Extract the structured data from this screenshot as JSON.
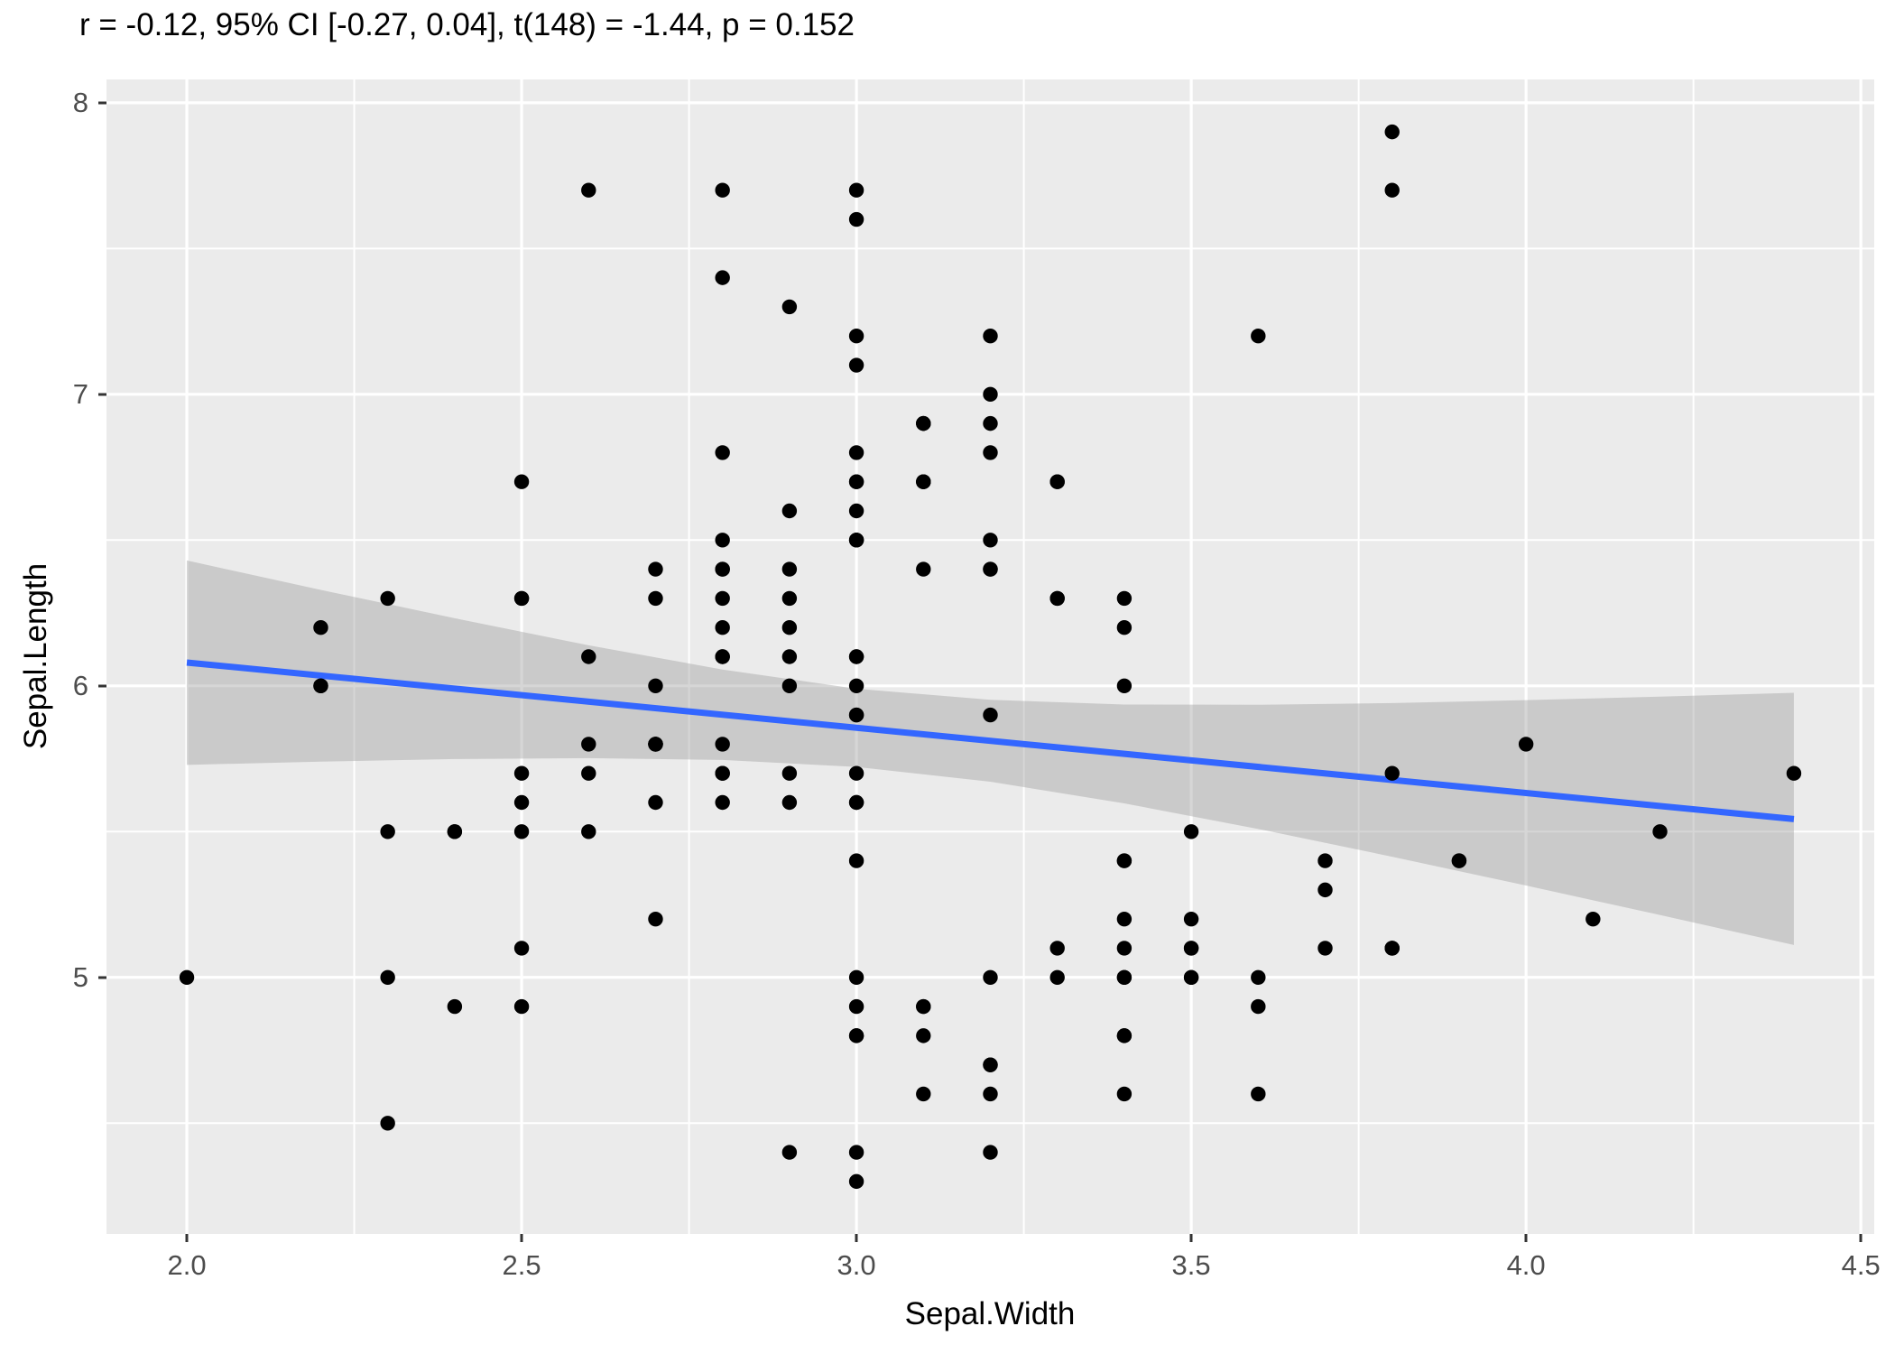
{
  "title": "r = -0.12, 95% CI [-0.27, 0.04], t(148) = -1.44, p = 0.152",
  "chart_data": {
    "type": "scatter",
    "title": "r = -0.12, 95% CI [-0.27, 0.04], t(148) = -1.44, p = 0.152",
    "xlabel": "Sepal.Width",
    "ylabel": "Sepal.Length",
    "x_domain": [
      1.88,
      4.52
    ],
    "y_domain": [
      4.12,
      8.08
    ],
    "x_major_ticks": [
      2.0,
      2.5,
      3.0,
      3.5,
      4.0,
      4.5
    ],
    "x_tick_labels": [
      "2.0",
      "2.5",
      "3.0",
      "3.5",
      "4.0",
      "4.5"
    ],
    "x_minor_ticks": [
      2.25,
      2.75,
      3.25,
      3.75,
      4.25
    ],
    "y_major_ticks": [
      5,
      6,
      7,
      8
    ],
    "y_tick_labels": [
      "5",
      "6",
      "7",
      "8"
    ],
    "y_minor_ticks": [
      4.5,
      5.5,
      6.5,
      7.5
    ],
    "grid": true,
    "legend": false,
    "points": [
      [
        3.5,
        5.1
      ],
      [
        3.0,
        4.9
      ],
      [
        3.2,
        4.7
      ],
      [
        3.1,
        4.6
      ],
      [
        3.6,
        5.0
      ],
      [
        3.9,
        5.4
      ],
      [
        3.4,
        4.6
      ],
      [
        3.4,
        5.0
      ],
      [
        2.9,
        4.4
      ],
      [
        3.1,
        4.9
      ],
      [
        3.7,
        5.4
      ],
      [
        3.4,
        4.8
      ],
      [
        3.0,
        4.8
      ],
      [
        3.0,
        4.3
      ],
      [
        4.0,
        5.8
      ],
      [
        4.4,
        5.7
      ],
      [
        3.9,
        5.4
      ],
      [
        3.5,
        5.1
      ],
      [
        3.8,
        5.7
      ],
      [
        3.8,
        5.1
      ],
      [
        3.4,
        5.4
      ],
      [
        3.7,
        5.1
      ],
      [
        3.6,
        4.6
      ],
      [
        3.3,
        5.1
      ],
      [
        3.4,
        4.8
      ],
      [
        3.0,
        5.0
      ],
      [
        3.4,
        5.0
      ],
      [
        3.5,
        5.2
      ],
      [
        3.4,
        5.2
      ],
      [
        3.2,
        4.7
      ],
      [
        3.1,
        4.8
      ],
      [
        3.4,
        5.4
      ],
      [
        4.1,
        5.2
      ],
      [
        4.2,
        5.5
      ],
      [
        3.1,
        4.9
      ],
      [
        3.2,
        5.0
      ],
      [
        3.5,
        5.5
      ],
      [
        3.6,
        4.9
      ],
      [
        3.0,
        4.4
      ],
      [
        3.4,
        5.1
      ],
      [
        3.5,
        5.0
      ],
      [
        2.3,
        4.5
      ],
      [
        3.2,
        4.4
      ],
      [
        3.5,
        5.0
      ],
      [
        3.8,
        5.1
      ],
      [
        3.0,
        4.8
      ],
      [
        3.8,
        5.1
      ],
      [
        3.2,
        4.6
      ],
      [
        3.7,
        5.3
      ],
      [
        3.3,
        5.0
      ],
      [
        3.2,
        7.0
      ],
      [
        3.2,
        6.4
      ],
      [
        3.1,
        6.9
      ],
      [
        2.3,
        5.5
      ],
      [
        2.8,
        6.5
      ],
      [
        2.8,
        5.7
      ],
      [
        3.3,
        6.3
      ],
      [
        2.4,
        4.9
      ],
      [
        2.9,
        6.6
      ],
      [
        2.7,
        5.2
      ],
      [
        2.0,
        5.0
      ],
      [
        3.0,
        5.9
      ],
      [
        2.2,
        6.0
      ],
      [
        2.9,
        6.1
      ],
      [
        2.9,
        5.6
      ],
      [
        3.1,
        6.7
      ],
      [
        3.0,
        5.6
      ],
      [
        2.7,
        5.8
      ],
      [
        2.2,
        6.2
      ],
      [
        2.5,
        5.6
      ],
      [
        3.2,
        5.9
      ],
      [
        2.8,
        6.1
      ],
      [
        2.5,
        6.3
      ],
      [
        2.8,
        6.1
      ],
      [
        2.9,
        6.4
      ],
      [
        3.0,
        6.6
      ],
      [
        2.8,
        6.8
      ],
      [
        3.0,
        6.7
      ],
      [
        2.9,
        6.0
      ],
      [
        2.6,
        5.7
      ],
      [
        2.4,
        5.5
      ],
      [
        2.4,
        5.5
      ],
      [
        2.7,
        5.8
      ],
      [
        2.7,
        6.0
      ],
      [
        3.0,
        5.4
      ],
      [
        3.4,
        6.0
      ],
      [
        3.1,
        6.7
      ],
      [
        2.3,
        6.3
      ],
      [
        3.0,
        5.6
      ],
      [
        2.5,
        5.5
      ],
      [
        2.6,
        5.5
      ],
      [
        3.0,
        6.1
      ],
      [
        2.6,
        5.8
      ],
      [
        2.3,
        5.0
      ],
      [
        2.7,
        5.6
      ],
      [
        3.0,
        5.7
      ],
      [
        2.9,
        5.7
      ],
      [
        2.9,
        6.2
      ],
      [
        2.5,
        5.1
      ],
      [
        2.8,
        5.7
      ],
      [
        3.3,
        6.3
      ],
      [
        2.7,
        5.8
      ],
      [
        3.0,
        7.1
      ],
      [
        2.9,
        6.3
      ],
      [
        3.0,
        6.5
      ],
      [
        3.0,
        7.6
      ],
      [
        2.5,
        4.9
      ],
      [
        2.9,
        7.3
      ],
      [
        2.5,
        6.7
      ],
      [
        3.6,
        7.2
      ],
      [
        3.2,
        6.5
      ],
      [
        2.7,
        6.4
      ],
      [
        3.0,
        6.8
      ],
      [
        2.5,
        5.7
      ],
      [
        2.8,
        5.8
      ],
      [
        3.2,
        6.4
      ],
      [
        3.0,
        6.5
      ],
      [
        3.8,
        7.7
      ],
      [
        2.6,
        7.7
      ],
      [
        2.2,
        6.0
      ],
      [
        3.2,
        6.9
      ],
      [
        2.8,
        5.6
      ],
      [
        2.8,
        7.7
      ],
      [
        2.7,
        6.3
      ],
      [
        3.3,
        6.7
      ],
      [
        3.2,
        7.2
      ],
      [
        2.8,
        6.2
      ],
      [
        3.0,
        6.1
      ],
      [
        2.8,
        6.4
      ],
      [
        3.0,
        7.2
      ],
      [
        2.8,
        7.4
      ],
      [
        3.8,
        7.9
      ],
      [
        2.8,
        6.4
      ],
      [
        2.8,
        6.3
      ],
      [
        2.6,
        6.1
      ],
      [
        3.0,
        7.7
      ],
      [
        3.4,
        6.3
      ],
      [
        3.1,
        6.4
      ],
      [
        3.0,
        6.0
      ],
      [
        3.1,
        6.9
      ],
      [
        3.1,
        6.7
      ],
      [
        3.1,
        6.9
      ],
      [
        2.7,
        5.8
      ],
      [
        3.2,
        6.8
      ],
      [
        3.3,
        6.7
      ],
      [
        3.0,
        6.7
      ],
      [
        2.5,
        6.3
      ],
      [
        3.0,
        6.5
      ],
      [
        3.4,
        6.2
      ],
      [
        3.0,
        5.9
      ]
    ],
    "regression_line": {
      "x": [
        2.0,
        4.4
      ],
      "y": [
        6.08,
        5.543
      ]
    },
    "ci_band": {
      "x": [
        2.0,
        2.2,
        2.4,
        2.6,
        2.8,
        3.0,
        3.2,
        3.4,
        3.6,
        3.8,
        4.0,
        4.2,
        4.4
      ],
      "upper": [
        6.43,
        6.329,
        6.232,
        6.139,
        6.056,
        5.99,
        5.952,
        5.936,
        5.935,
        5.941,
        5.951,
        5.963,
        5.976
      ],
      "lower": [
        5.729,
        5.74,
        5.749,
        5.752,
        5.746,
        5.722,
        5.671,
        5.597,
        5.509,
        5.414,
        5.315,
        5.214,
        5.111
      ]
    },
    "colors": {
      "panel_bg": "#EBEBEB",
      "grid": "#FFFFFF",
      "point": "#000000",
      "line": "#3366FF",
      "band": "#999999",
      "band_opacity": 0.4,
      "tick_label": "#4D4D4D",
      "tick_mark": "#333333",
      "axis_title": "#000000",
      "title_text": "#000000"
    }
  }
}
